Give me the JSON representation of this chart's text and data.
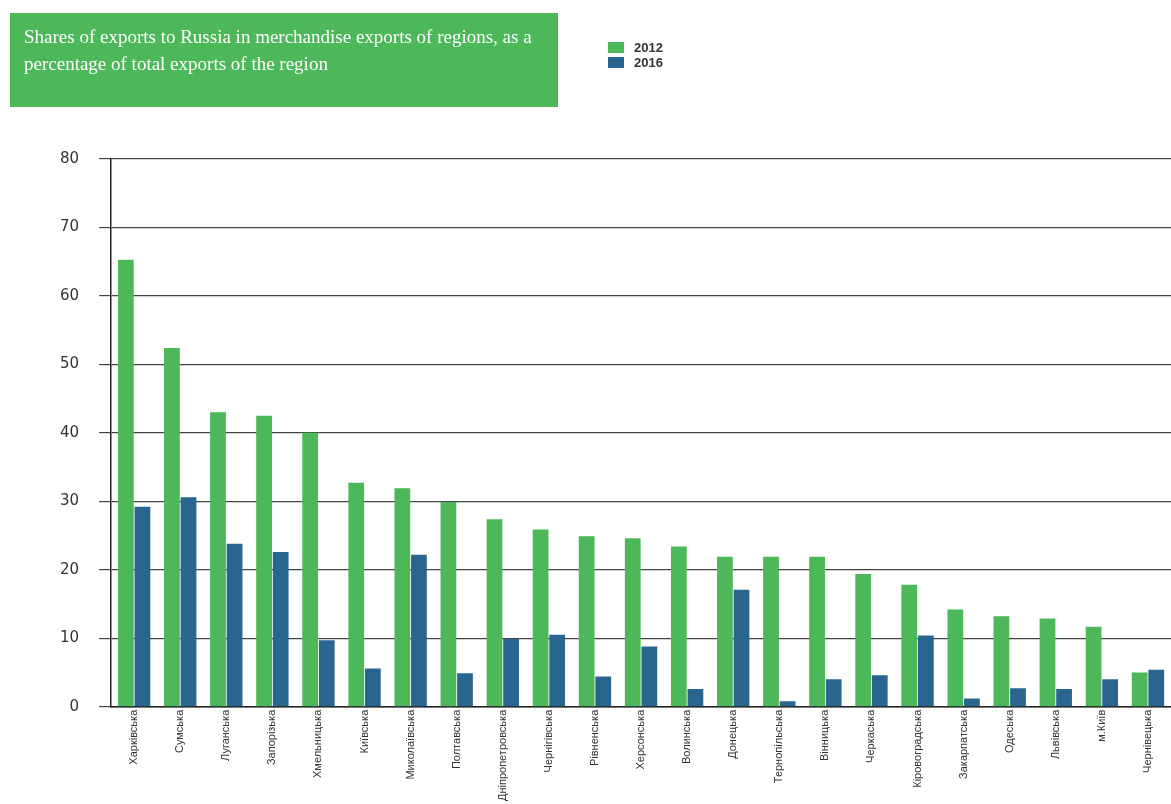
{
  "chart_data": {
    "type": "bar",
    "title": "Shares of exports to Russia in merchandise exports of regions, as a percentage of total exports of the region",
    "categories": [
      "Харківська",
      "Сумська",
      "Луганська",
      "Запорізька",
      "Хмельницька",
      "Київська",
      "Миколаївська",
      "Полтавська",
      "Дніпропетровська",
      "Чернігівська",
      "Рівненська",
      "Херсонська",
      "Волинська",
      "Донецька",
      "Тернопільська",
      "Вінницька",
      "Черкаська",
      "Кіровоградська",
      "Закарпатська",
      "Одеська",
      "Львівська",
      "м.Київ",
      "Чернівецька"
    ],
    "series": [
      {
        "name": "2012",
        "color": "#4db85a",
        "values": [
          65.3,
          52.4,
          43,
          42.5,
          40,
          32.7,
          31.9,
          29.9,
          27.4,
          25.9,
          24.9,
          24.6,
          23.4,
          21.9,
          21.9,
          21.9,
          19.4,
          17.8,
          14.2,
          13.2,
          12.9,
          11.7,
          5
        ]
      },
      {
        "name": "2016",
        "color": "#2a6590",
        "values": [
          29.2,
          30.6,
          23.8,
          22.6,
          9.7,
          5.6,
          22.2,
          4.9,
          9.9,
          10.5,
          4.4,
          8.8,
          2.6,
          17.1,
          0.8,
          4,
          4.6,
          10.4,
          1.2,
          2.7,
          2.6,
          4,
          5.4
        ]
      }
    ],
    "ylim": [
      0,
      80
    ],
    "yticks": [
      0,
      10,
      20,
      30,
      40,
      50,
      60,
      70,
      80
    ],
    "grid": "y",
    "legend": "top"
  }
}
